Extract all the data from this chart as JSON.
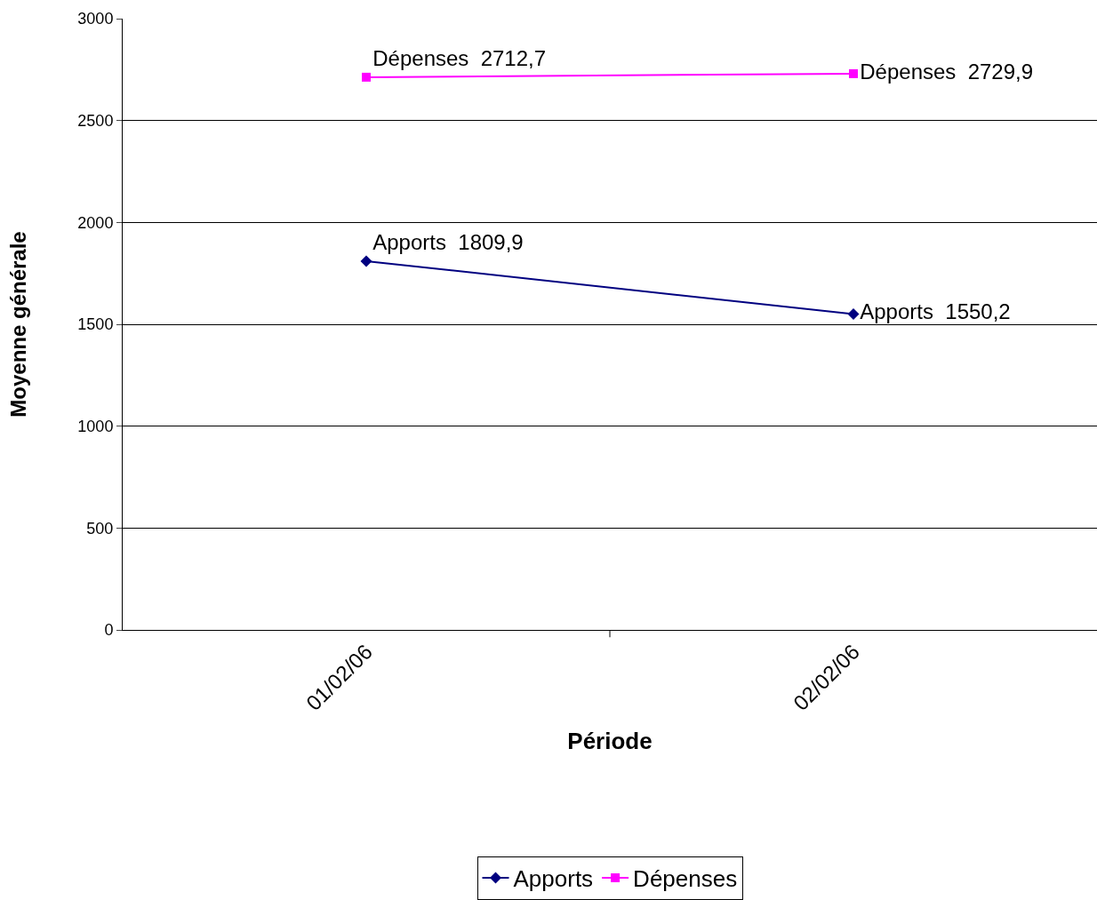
{
  "chart_data": {
    "type": "line",
    "xlabel": "Période",
    "ylabel": "Moyenne générale",
    "categories": [
      "01/02/06",
      "02/02/06"
    ],
    "series": [
      {
        "name": "Apports",
        "color": "#000080",
        "marker": "diamond",
        "values": [
          1809.9,
          1550.2
        ],
        "value_labels": [
          "Apports  1809,9",
          "Apports  1550,2"
        ]
      },
      {
        "name": "Dépenses",
        "color": "#ff00ff",
        "marker": "square",
        "values": [
          2712.7,
          2729.9
        ],
        "value_labels": [
          "Dépenses  2712,7",
          "Dépenses  2729,9"
        ]
      }
    ],
    "ylim": [
      0,
      3000
    ],
    "yticks": [
      0,
      500,
      1000,
      1500,
      2000,
      2500,
      3000
    ],
    "grid": "y",
    "legend": "bottom"
  }
}
